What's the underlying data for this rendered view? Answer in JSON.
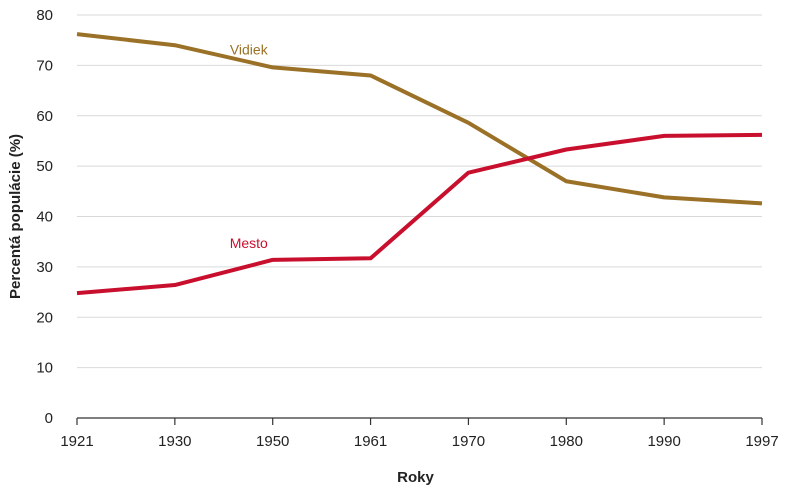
{
  "chart_data": {
    "type": "line",
    "title": "",
    "xlabel": "Roky",
    "ylabel": "Percentá populácie (%)",
    "x": [
      "1921",
      "1930",
      "1950",
      "1961",
      "1970",
      "1980",
      "1990",
      "1997"
    ],
    "ylim": [
      0,
      80
    ],
    "yticks": [
      0,
      10,
      20,
      30,
      40,
      50,
      60,
      70,
      80
    ],
    "grid": true,
    "legend": "inline labels",
    "series": [
      {
        "name": "Vidiek",
        "color": "#9a7127",
        "values": [
          76.2,
          74.0,
          69.6,
          68.0,
          58.6,
          47.0,
          43.8,
          42.6
        ]
      },
      {
        "name": "Mesto",
        "color": "#c8102e",
        "values": [
          24.8,
          26.4,
          31.4,
          31.7,
          48.7,
          53.3,
          56.0,
          56.2
        ]
      }
    ]
  }
}
